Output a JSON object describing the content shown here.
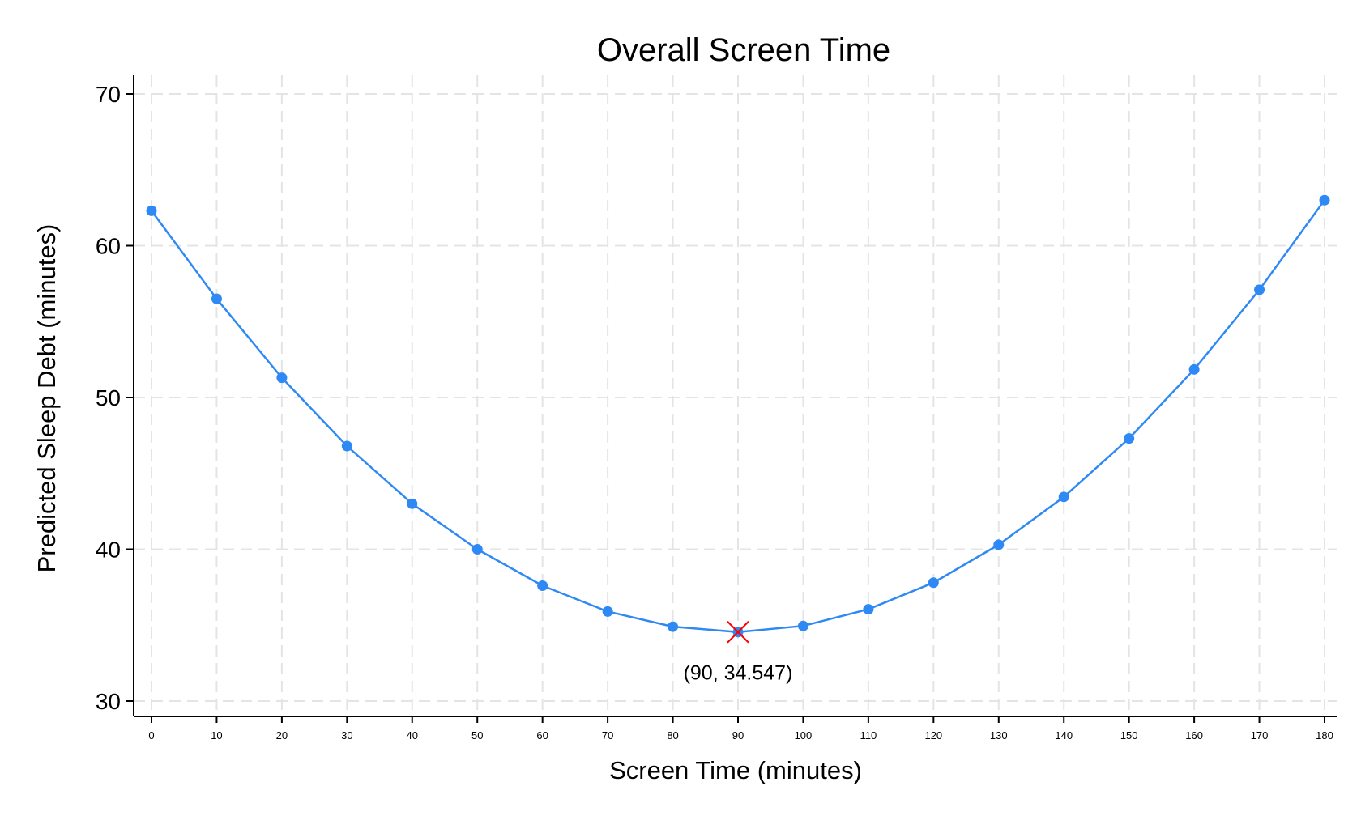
{
  "chart_data": {
    "type": "line",
    "title": "Overall Screen Time",
    "xlabel": "Screen Time (minutes)",
    "ylabel": "Predicted Sleep Debt (minutes)",
    "x": [
      0,
      10,
      20,
      30,
      40,
      50,
      60,
      70,
      80,
      90,
      100,
      110,
      120,
      130,
      140,
      150,
      160,
      170,
      180
    ],
    "series": [
      {
        "name": "",
        "values": [
          62.3,
          56.5,
          51.3,
          46.8,
          43.0,
          40.0,
          37.6,
          35.9,
          34.9,
          34.547,
          34.95,
          36.05,
          37.8,
          40.3,
          43.45,
          47.3,
          51.85,
          57.1,
          63.0
        ]
      }
    ],
    "xticks": [
      0,
      10,
      20,
      30,
      40,
      50,
      60,
      70,
      80,
      90,
      100,
      110,
      120,
      130,
      140,
      150,
      160,
      170,
      180
    ],
    "yticks": [
      30,
      40,
      50,
      60,
      70
    ],
    "xlim": [
      0,
      180
    ],
    "ylim": [
      30,
      70
    ],
    "grid": true,
    "series_color": "#2f89f5",
    "marker": {
      "x": 90,
      "y": 34.547,
      "label": "(90, 34.547)",
      "color": "#ff0000"
    }
  }
}
